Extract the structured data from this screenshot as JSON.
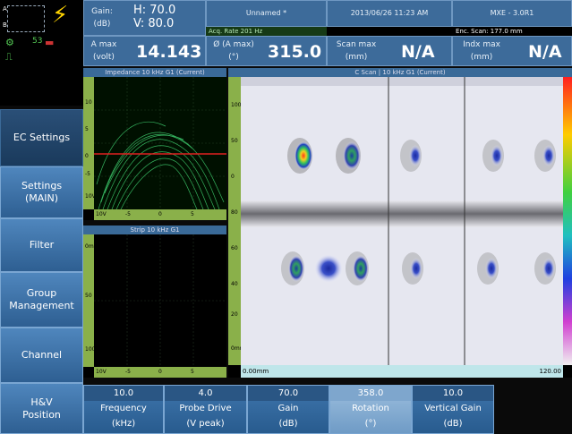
{
  "status": {
    "label_a": "A",
    "label_b": "B",
    "signal": "53"
  },
  "header": {
    "gain": {
      "label": "Gain:",
      "unit": "(dB)",
      "h": "H: 70.0",
      "v": "V: 80.0"
    },
    "file": {
      "name": "Unnamed *",
      "rate": "Acq. Rate 201  Hz"
    },
    "date": "2013/06/26 11:23 AM",
    "instrument": "MXE - 3.0R1",
    "enc_scan": "Enc. Scan:  177.0 mm",
    "readings": [
      {
        "label": "A max",
        "unit": "(volt)",
        "value": "14.143"
      },
      {
        "label": "Ø (A max)",
        "unit": "(°)",
        "value": "315.0"
      },
      {
        "label": "Scan max",
        "unit": "(mm)",
        "value": "N/A"
      },
      {
        "label": "Indx max",
        "unit": "(mm)",
        "value": "N/A"
      }
    ]
  },
  "menu": [
    {
      "label": "EC Settings"
    },
    {
      "label": "Settings\n(MAIN)"
    },
    {
      "label": "Filter"
    },
    {
      "label": "Group\nManagement"
    },
    {
      "label": "Channel"
    },
    {
      "label": "H&V\nPosition"
    }
  ],
  "impedance": {
    "title": "Impedance 10 kHz G1 (Current)",
    "vticks": [
      "10",
      "5",
      "0",
      "-5",
      "10V"
    ],
    "hticks": [
      "10V",
      "-5",
      "0",
      "5"
    ]
  },
  "strip": {
    "title": "Strip 10 kHz G1",
    "vticks": [
      "0mm",
      "50",
      "100"
    ],
    "hticks": [
      "10V",
      "-5",
      "0",
      "5"
    ]
  },
  "cscan": {
    "title": "C Scan | 10 kHz G1 (Current)",
    "start": "0.00mm",
    "end": "120.00",
    "vticks": [
      "100",
      "50",
      "0",
      "80",
      "60",
      "40",
      "20",
      "0mm"
    ]
  },
  "params": [
    {
      "value": "10.0",
      "name": "Frequency",
      "unit": "(kHz)"
    },
    {
      "value": "4.0",
      "name": "Probe Drive",
      "unit": "(V peak)"
    },
    {
      "value": "70.0",
      "name": "Gain",
      "unit": "(dB)"
    },
    {
      "value": "358.0",
      "name": "Rotation",
      "unit": "(°)"
    },
    {
      "value": "10.0",
      "name": "Vertical Gain",
      "unit": "(dB)"
    }
  ]
}
